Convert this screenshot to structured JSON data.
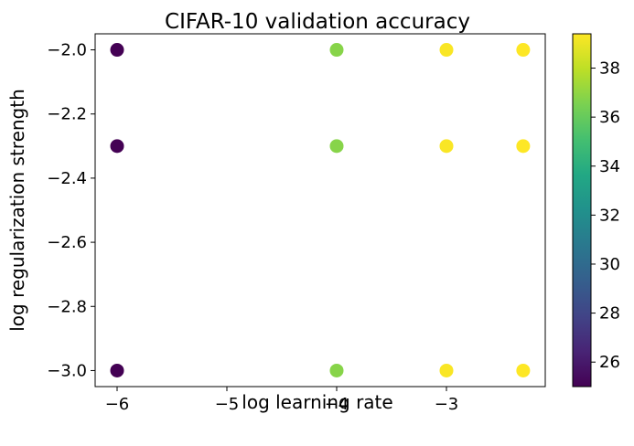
{
  "chart_data": {
    "type": "scatter",
    "title": "CIFAR-10 validation accuracy",
    "xlabel": "log learning rate",
    "ylabel": "log regularization strength",
    "xlim": [
      -6.2,
      -2.1
    ],
    "ylim": [
      -3.05,
      -1.95
    ],
    "xticks": [
      -6,
      -5,
      -4,
      -3
    ],
    "xtick_labels": [
      "−6",
      "−5",
      "−4",
      "−3"
    ],
    "yticks": [
      -2.0,
      -2.2,
      -2.4,
      -2.6,
      -2.8,
      -3.0
    ],
    "ytick_labels": [
      "−2.0",
      "−2.2",
      "−2.4",
      "−2.6",
      "−2.8",
      "−3.0"
    ],
    "colormap": "viridis",
    "clim": [
      25.0,
      39.4
    ],
    "colorbar_ticks": [
      26,
      28,
      30,
      32,
      34,
      36,
      38
    ],
    "colorbar_tick_labels": [
      "26",
      "28",
      "30",
      "32",
      "34",
      "36",
      "38"
    ],
    "points": [
      {
        "x": -6.0,
        "y": -2.0,
        "value": 25.0
      },
      {
        "x": -6.0,
        "y": -2.3,
        "value": 25.0
      },
      {
        "x": -6.0,
        "y": -3.0,
        "value": 25.0
      },
      {
        "x": -4.0,
        "y": -2.0,
        "value": 36.8
      },
      {
        "x": -4.0,
        "y": -2.3,
        "value": 36.8
      },
      {
        "x": -4.0,
        "y": -3.0,
        "value": 36.8
      },
      {
        "x": -3.0,
        "y": -2.0,
        "value": 39.3
      },
      {
        "x": -3.0,
        "y": -2.3,
        "value": 39.3
      },
      {
        "x": -3.0,
        "y": -3.0,
        "value": 39.3
      },
      {
        "x": -2.301,
        "y": -2.0,
        "value": 39.4
      },
      {
        "x": -2.301,
        "y": -2.3,
        "value": 39.4
      },
      {
        "x": -2.301,
        "y": -3.0,
        "value": 39.4
      }
    ]
  }
}
